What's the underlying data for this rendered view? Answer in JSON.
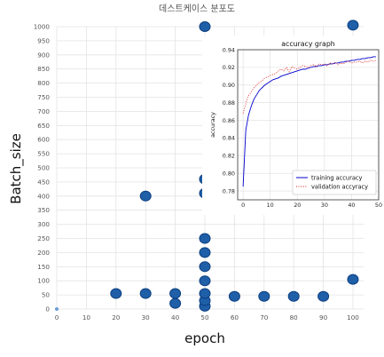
{
  "chart_data": [
    {
      "type": "scatter",
      "title": "데스트케이스 분포도",
      "xlabel": "epoch",
      "ylabel": "Batch_size",
      "xlim": [
        0,
        100
      ],
      "ylim": [
        0,
        1000
      ],
      "xticks": [
        "0",
        "10",
        "20",
        "30",
        "40",
        "50",
        "60",
        "70",
        "80",
        "90",
        "100"
      ],
      "yticks": [
        "0",
        "50",
        "100",
        "150",
        "200",
        "250",
        "300",
        "350",
        "400",
        "450",
        "500",
        "550",
        "600",
        "650",
        "700",
        "750",
        "800",
        "850",
        "900",
        "950",
        "1000"
      ],
      "grid": true,
      "marker_color": "#1f5fa8",
      "marker_edge_color": "#0d3f80",
      "origin_marker_color": "#6a9fd8",
      "points": [
        {
          "x": 0,
          "y": 0
        },
        {
          "x": 20,
          "y": 55
        },
        {
          "x": 30,
          "y": 55
        },
        {
          "x": 30,
          "y": 400
        },
        {
          "x": 40,
          "y": 20
        },
        {
          "x": 40,
          "y": 55
        },
        {
          "x": 50,
          "y": 10
        },
        {
          "x": 50,
          "y": 30
        },
        {
          "x": 50,
          "y": 55
        },
        {
          "x": 50,
          "y": 100
        },
        {
          "x": 50,
          "y": 150
        },
        {
          "x": 50,
          "y": 200
        },
        {
          "x": 50,
          "y": 250
        },
        {
          "x": 50,
          "y": 410
        },
        {
          "x": 50,
          "y": 460
        },
        {
          "x": 50,
          "y": 1000
        },
        {
          "x": 60,
          "y": 45
        },
        {
          "x": 70,
          "y": 45
        },
        {
          "x": 80,
          "y": 45
        },
        {
          "x": 90,
          "y": 45
        },
        {
          "x": 100,
          "y": 105
        },
        {
          "x": 100,
          "y": 1005
        }
      ]
    },
    {
      "type": "line",
      "title": "accuracy graph",
      "xlabel": "",
      "ylabel": "accuracy",
      "xlim": [
        -2,
        50
      ],
      "ylim": [
        0.77,
        0.94
      ],
      "xticks": [
        0,
        10,
        20,
        30,
        40,
        50
      ],
      "yticks": [
        0.78,
        0.8,
        0.82,
        0.84,
        0.86,
        0.88,
        0.9,
        0.92,
        0.94
      ],
      "grid": true,
      "legend": "bottom-right",
      "series": [
        {
          "name": "training accuracy",
          "color": "#0000cc",
          "style": "solid",
          "x": [
            0,
            1,
            2,
            3,
            4,
            5,
            6,
            7,
            8,
            9,
            10,
            11,
            12,
            13,
            14,
            15,
            16,
            17,
            18,
            19,
            20,
            21,
            22,
            23,
            24,
            25,
            26,
            27,
            28,
            29,
            30,
            31,
            32,
            33,
            34,
            35,
            36,
            37,
            38,
            39,
            40,
            41,
            42,
            43,
            44,
            45,
            46,
            47,
            48,
            49
          ],
          "values": [
            0.785,
            0.849,
            0.866,
            0.876,
            0.884,
            0.889,
            0.894,
            0.897,
            0.9,
            0.902,
            0.904,
            0.906,
            0.907,
            0.908,
            0.91,
            0.911,
            0.912,
            0.913,
            0.914,
            0.915,
            0.916,
            0.917,
            0.918,
            0.918,
            0.919,
            0.92,
            0.921,
            0.921,
            0.922,
            0.922,
            0.923,
            0.923,
            0.924,
            0.924,
            0.925,
            0.925,
            0.926,
            0.926,
            0.927,
            0.927,
            0.928,
            0.928,
            0.929,
            0.929,
            0.93,
            0.93,
            0.931,
            0.931,
            0.932,
            0.932
          ]
        },
        {
          "name": "validation accyracy",
          "color": "#e02020",
          "style": "dotted",
          "x": [
            0,
            1,
            2,
            3,
            4,
            5,
            6,
            7,
            8,
            9,
            10,
            11,
            12,
            13,
            14,
            15,
            16,
            17,
            18,
            19,
            20,
            21,
            22,
            23,
            24,
            25,
            26,
            27,
            28,
            29,
            30,
            31,
            32,
            33,
            34,
            35,
            36,
            37,
            38,
            39,
            40,
            41,
            42,
            43,
            44,
            45,
            46,
            47,
            48,
            49
          ],
          "values": [
            0.868,
            0.879,
            0.888,
            0.892,
            0.897,
            0.9,
            0.903,
            0.905,
            0.908,
            0.909,
            0.911,
            0.912,
            0.913,
            0.916,
            0.918,
            0.916,
            0.92,
            0.915,
            0.921,
            0.919,
            0.918,
            0.92,
            0.922,
            0.921,
            0.92,
            0.922,
            0.923,
            0.921,
            0.924,
            0.923,
            0.924,
            0.922,
            0.925,
            0.924,
            0.926,
            0.923,
            0.925,
            0.924,
            0.926,
            0.927,
            0.925,
            0.926,
            0.926,
            0.927,
            0.925,
            0.927,
            0.926,
            0.928,
            0.927,
            0.928
          ]
        }
      ]
    }
  ]
}
